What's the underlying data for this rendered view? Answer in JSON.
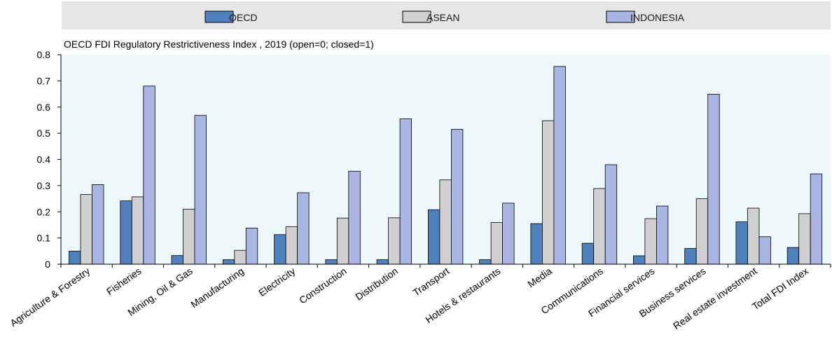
{
  "chart_data": {
    "type": "bar",
    "title": "",
    "subtitle": "OECD FDI Regulatory Restrictiveness Index , 2019 (open=0; closed=1)",
    "xlabel": "",
    "ylabel": "",
    "ylim": [
      0,
      0.8
    ],
    "yticks": [
      "0",
      "0.1",
      "0.2",
      "0.3",
      "0.4",
      "0.5",
      "0.6",
      "0.7",
      "0.8"
    ],
    "grid": false,
    "legend_position": "top",
    "categories": [
      "Agriculture & Forestry",
      "Fisheries",
      "Mining, Oil & Gas",
      "Manufacturing",
      "Electricity",
      "Construction",
      "Distribution",
      "Transport",
      "Hotels & restaurants",
      "Media",
      "Communications",
      "Financial services",
      "Business services",
      "Real estate investment",
      "Total FDI Index"
    ],
    "series": [
      {
        "name": "OECD",
        "color": "#4f81bd",
        "values": [
          0.05,
          0.242,
          0.033,
          0.017,
          0.113,
          0.017,
          0.017,
          0.208,
          0.017,
          0.155,
          0.08,
          0.032,
          0.06,
          0.162,
          0.064
        ]
      },
      {
        "name": "ASEAN",
        "color": "#d0d0d0",
        "values": [
          0.266,
          0.257,
          0.21,
          0.053,
          0.143,
          0.176,
          0.177,
          0.322,
          0.159,
          0.548,
          0.289,
          0.174,
          0.25,
          0.214,
          0.193
        ]
      },
      {
        "name": "INDONESIA",
        "color": "#a9b6e3",
        "values": [
          0.304,
          0.68,
          0.568,
          0.138,
          0.273,
          0.355,
          0.555,
          0.515,
          0.233,
          0.755,
          0.38,
          0.222,
          0.649,
          0.105,
          0.345
        ]
      }
    ]
  },
  "colors": {
    "plot_background": "#edf8fa",
    "legend_background": "#e6e6e6",
    "bar_outline": "#000000"
  }
}
